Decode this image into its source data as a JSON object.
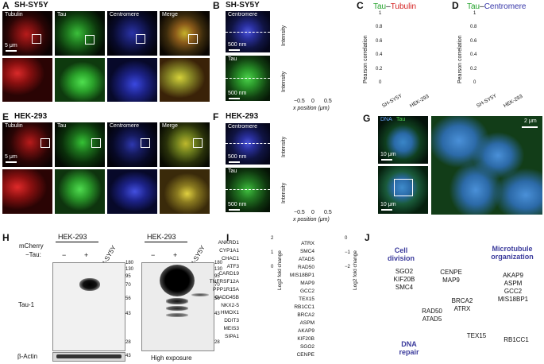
{
  "panel_letters": {
    "A": "A",
    "B": "B",
    "C": "C",
    "D": "D",
    "E": "E",
    "F": "F",
    "G": "G",
    "H": "H",
    "I": "I",
    "J": "J"
  },
  "panel_A": {
    "cell_line": "SH-SY5Y",
    "channels": [
      "Tubulin",
      "Tau",
      "Centromere",
      "Merge"
    ],
    "scale_bar": "5 μm",
    "colors": {
      "tubulin": "#e8201e",
      "tau": "#2ecc3b",
      "centromere": "#3340e0"
    }
  },
  "panel_B": {
    "cell_line": "SH-SY5Y",
    "top_image_label": "Centromere",
    "bottom_image_label": "Tau",
    "scale_bar_top": "500 nm",
    "scale_bar_bottom": "500 nm",
    "ylabel": "Intensity",
    "xlabel": "x position (μm)",
    "xticks": [
      "−0.5",
      "0",
      "0.5"
    ]
  },
  "panel_C": {
    "title_a": "Tau",
    "title_sep": "–",
    "title_b": "Tubulin",
    "ylabel": "Pearson correlation",
    "yticks": [
      "0",
      "0.2",
      "0.4",
      "0.6",
      "0.8",
      "1"
    ],
    "groups": [
      "SH-SY5Y",
      "HEK-293"
    ]
  },
  "panel_D": {
    "title_a": "Tau",
    "title_sep": "–",
    "title_b": "Centromere",
    "ylabel": "Pearson correlation",
    "yticks": [
      "0",
      "0.2",
      "0.4",
      "0.6",
      "0.8",
      "1"
    ],
    "groups": [
      "SH-SY5Y",
      "HEK-293"
    ]
  },
  "panel_E": {
    "cell_line": "HEK-293",
    "channels": [
      "Tubulin",
      "Tau",
      "Centromere",
      "Merge"
    ],
    "scale_bar": "5 μm"
  },
  "panel_F": {
    "cell_line": "HEK-293",
    "top_image_label": "Centromere",
    "bottom_image_label": "Tau",
    "scale_bar_top": "500 nm",
    "scale_bar_bottom": "500 nm",
    "ylabel": "Intensity",
    "xlabel": "x position (μm)",
    "xticks": [
      "−0.5",
      "0",
      "0.5"
    ]
  },
  "panel_G": {
    "legend_dna": "DNA",
    "legend_tau": "Tau",
    "scale_small_top": "10 μm",
    "scale_small_bottom": "10 μm",
    "scale_large": "2 μm"
  },
  "panel_H": {
    "row_label_1": "mCherry",
    "row_label_2": "−Tau:",
    "cell_a": "HEK-293",
    "cell_b": "SH-SY5Y",
    "lane_signs": [
      "−",
      "+"
    ],
    "markers": [
      "180",
      "130",
      "95",
      "70",
      "56",
      "43",
      "28"
    ],
    "band_label": "Tau-1",
    "loading_label": "β-Actin",
    "loading_marker": "43",
    "exposure_label": "High exposure"
  },
  "panel_I": {
    "up_genes": [
      "ANKRD1",
      "CYP1A1",
      "CHAC1",
      "ATF3",
      "CARD19",
      "TNFRSF12A",
      "PPP1R15A",
      "GADD45B",
      "NKX2-5",
      "HMOX1",
      "DDIT3",
      "MEIS3",
      "SIPA1"
    ],
    "down_genes": [
      "ATRX",
      "SMC4",
      "ATAD5",
      "RAD50",
      "MIS18BP1",
      "MAP9",
      "GCC2",
      "TEX15",
      "RB1CC1",
      "BRCA2",
      "ASPM",
      "AKAP9",
      "KIF20B",
      "SGO2",
      "CENPE"
    ],
    "up_scale_ticks": [
      "2",
      "1",
      "0"
    ],
    "down_scale_ticks": [
      "0",
      "−1",
      "−2"
    ],
    "scale_label": "Log2 fold change"
  },
  "panel_J": {
    "set_cell_division": "Cell division",
    "set_microtubule": "Microtubule organization",
    "set_dna_repair": "DNA repair",
    "only_cell_division": [
      "SGO2",
      "KIF20B",
      "SMC4"
    ],
    "cell_micro": [
      "CENPE",
      "MAP9"
    ],
    "only_micro": [
      "AKAP9",
      "ASPM",
      "GCC2",
      "MIS18BP1"
    ],
    "all_three": [
      "BRCA2",
      "ATRX"
    ],
    "cell_dna": [
      "RAD50",
      "ATAD5"
    ],
    "micro_dna": [
      "TEX15"
    ],
    "outside": "RB1CC1"
  },
  "chart_data": [
    {
      "type": "line",
      "panel": "B",
      "title": "Centromere line profile (SH-SY5Y)",
      "x": [
        -0.9,
        -0.6,
        -0.4,
        -0.2,
        0,
        0.2,
        0.4,
        0.6,
        0.9
      ],
      "values": [
        0.08,
        0.15,
        0.4,
        0.85,
        1.0,
        0.85,
        0.4,
        0.15,
        0.08
      ],
      "color": "#3340d0",
      "xlim": [
        -0.9,
        0.9
      ]
    },
    {
      "type": "line",
      "panel": "B",
      "title": "Tau line profile (SH-SY5Y)",
      "x": [
        -0.9,
        -0.6,
        -0.4,
        -0.2,
        0,
        0.2,
        0.4,
        0.6,
        0.9
      ],
      "values": [
        0.2,
        0.35,
        0.6,
        0.85,
        0.95,
        0.85,
        0.6,
        0.35,
        0.2
      ],
      "color": "#2aa63a",
      "xlim": [
        -0.9,
        0.9
      ]
    },
    {
      "type": "box",
      "panel": "C",
      "categories": [
        "SH-SY5Y",
        "HEK-293"
      ],
      "q1": [
        0.85,
        0.86
      ],
      "median": [
        0.89,
        0.9
      ],
      "q3": [
        0.93,
        0.94
      ],
      "whisker_low": [
        0.79,
        0.8
      ],
      "whisker_high": [
        0.97,
        0.98
      ],
      "outliers": [
        [
          0.72
        ],
        [
          0.71,
          0.76
        ]
      ],
      "ylim": [
        0,
        1
      ]
    },
    {
      "type": "box",
      "panel": "D",
      "categories": [
        "SH-SY5Y",
        "HEK-293"
      ],
      "q1": [
        0.85,
        0.49
      ],
      "median": [
        0.89,
        0.64
      ],
      "q3": [
        0.94,
        0.82
      ],
      "whisker_low": [
        0.77,
        0.2
      ],
      "whisker_high": [
        0.96,
        0.97
      ],
      "outliers": [
        [],
        []
      ],
      "ylim": [
        0,
        1
      ]
    },
    {
      "type": "line",
      "panel": "F",
      "title": "Centromere line profile (HEK-293)",
      "x": [
        -0.9,
        -0.6,
        -0.4,
        -0.2,
        0,
        0.2,
        0.4,
        0.6,
        0.9
      ],
      "values": [
        0.05,
        0.08,
        0.2,
        0.7,
        1.0,
        0.7,
        0.2,
        0.08,
        0.05
      ],
      "color": "#3340d0",
      "xlim": [
        -0.9,
        0.9
      ]
    },
    {
      "type": "line",
      "panel": "F",
      "title": "Tau line profile (HEK-293)",
      "x": [
        -0.9,
        -0.6,
        -0.4,
        -0.2,
        0,
        0.2,
        0.4,
        0.6,
        0.9
      ],
      "values": [
        0.15,
        0.18,
        0.3,
        0.55,
        0.65,
        0.55,
        0.3,
        0.18,
        0.15
      ],
      "color": "#2aa63a",
      "xlim": [
        -0.9,
        0.9
      ]
    },
    {
      "type": "heatmap",
      "panel": "I",
      "title": "Up-regulated genes",
      "rows": [
        "ANKRD1",
        "CYP1A1",
        "CHAC1",
        "ATF3",
        "CARD19",
        "TNFRSF12A",
        "PPP1R15A",
        "GADD45B",
        "NKX2-5",
        "HMOX1",
        "DDIT3",
        "MEIS3",
        "SIPA1"
      ],
      "values": [
        2.3,
        2.0,
        1.9,
        1.8,
        1.6,
        1.5,
        1.4,
        1.3,
        1.2,
        1.1,
        1.05,
        1.0,
        1.0
      ],
      "range": [
        0,
        2.5
      ]
    },
    {
      "type": "heatmap",
      "panel": "I",
      "title": "Down-regulated genes",
      "rows": [
        "ATRX",
        "SMC4",
        "ATAD5",
        "RAD50",
        "MIS18BP1",
        "MAP9",
        "GCC2",
        "TEX15",
        "RB1CC1",
        "BRCA2",
        "ASPM",
        "AKAP9",
        "KIF20B",
        "SGO2",
        "CENPE"
      ],
      "values": [
        -1.0,
        -1.05,
        -1.1,
        -1.15,
        -1.2,
        -1.25,
        -1.3,
        -1.35,
        -1.4,
        -1.45,
        -1.5,
        -1.55,
        -1.6,
        -1.7,
        -1.8
      ],
      "range": [
        -2.5,
        0
      ]
    }
  ]
}
